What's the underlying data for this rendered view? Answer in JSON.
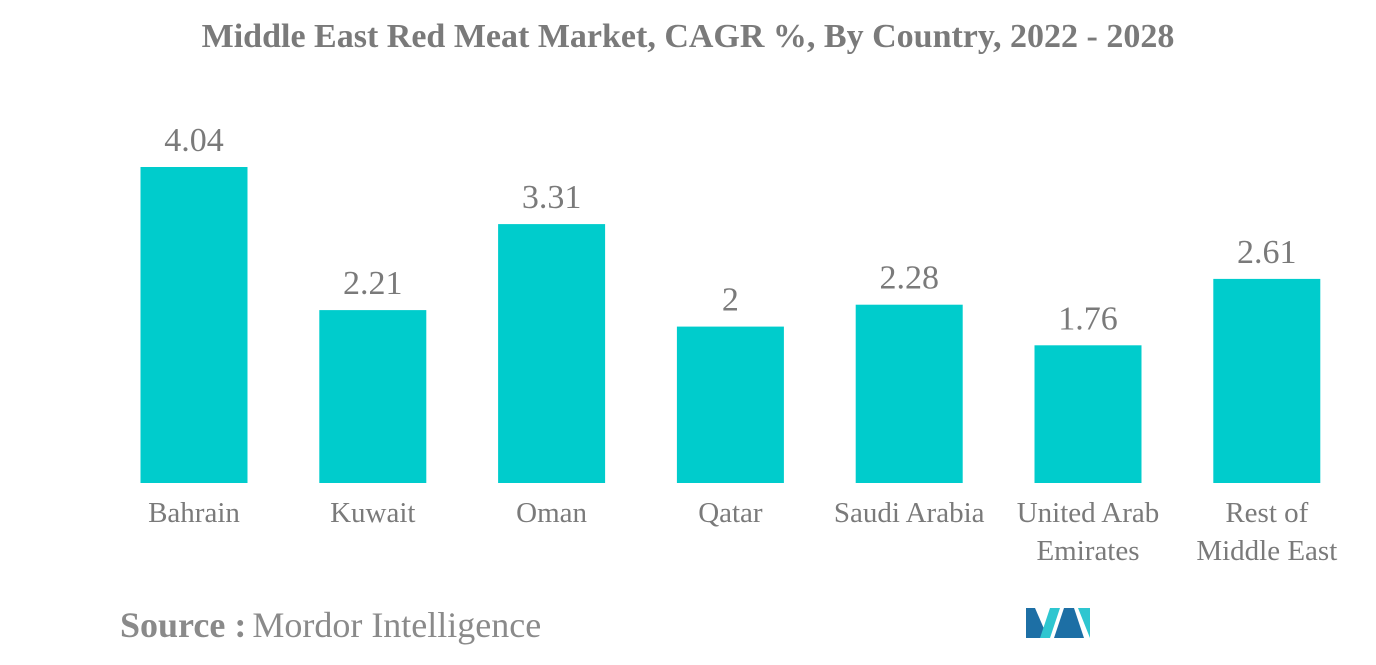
{
  "colors": {
    "bar": "#00cccc",
    "text": "#7a7a7a",
    "logo_dark": "#1d6fa5",
    "logo_light": "#2ec6d0"
  },
  "source": {
    "label": "Source :",
    "value": "Mordor Intelligence"
  },
  "logo": {
    "icon": "mordor-intelligence-logo"
  },
  "chart_data": {
    "type": "bar",
    "title": "Middle East Red Meat Market, CAGR %, By Country, 2022 - 2028",
    "xlabel": "",
    "ylabel": "",
    "ylim": [
      0,
      4.04
    ],
    "grid": false,
    "legend": "none",
    "categories": [
      [
        "Bahrain"
      ],
      [
        "Kuwait"
      ],
      [
        "Oman"
      ],
      [
        "Qatar"
      ],
      [
        "Saudi Arabia"
      ],
      [
        "United Arab",
        "Emirates"
      ],
      [
        "Rest of",
        "Middle East"
      ]
    ],
    "values": [
      4.04,
      2.21,
      3.31,
      2,
      2.28,
      1.76,
      2.61
    ],
    "value_labels": [
      "4.04",
      "2.21",
      "3.31",
      "2",
      "2.28",
      "1.76",
      "2.61"
    ]
  }
}
